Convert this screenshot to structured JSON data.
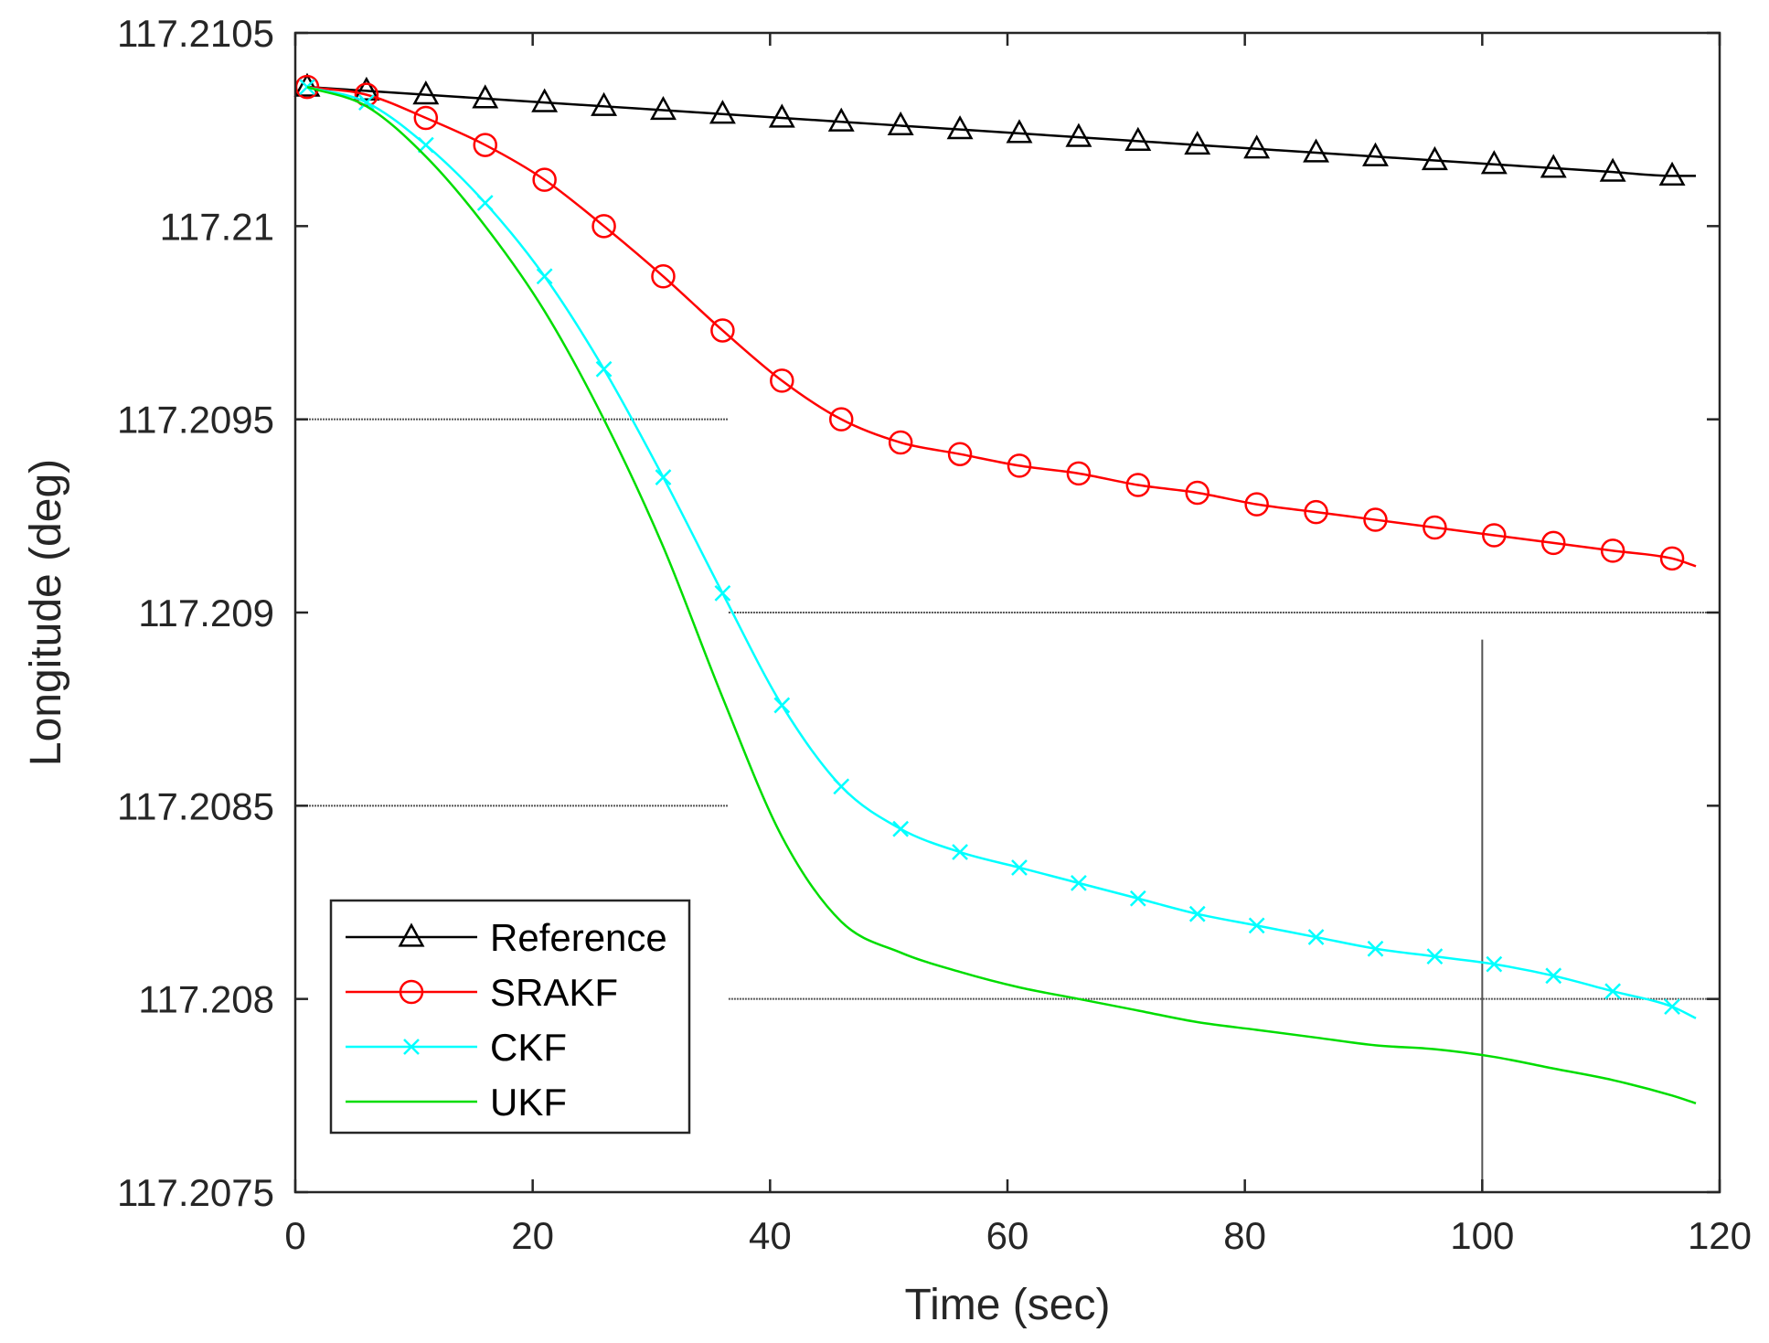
{
  "chart_data": {
    "type": "line",
    "title": "",
    "xlabel": "Time (sec)",
    "ylabel": "Longitude (deg)",
    "xlim": [
      0,
      120
    ],
    "ylim": [
      117.2075,
      117.2105
    ],
    "xticks": [
      0,
      20,
      40,
      60,
      80,
      100,
      120
    ],
    "xtick_labels": [
      "0",
      "20",
      "40",
      "60",
      "80",
      "100",
      "120"
    ],
    "yticks": [
      117.2075,
      117.208,
      117.2085,
      117.209,
      117.2095,
      117.21,
      117.2105
    ],
    "ytick_labels": [
      "117.2075",
      "117.208",
      "117.2085",
      "117.209",
      "117.2095",
      "117.21",
      "117.2105"
    ],
    "legend_position": "bottom-left",
    "reference_lines": [
      {
        "orientation": "horizontal",
        "y": 117.2095,
        "x_range": [
          0,
          36.5
        ],
        "style": "dotted"
      },
      {
        "orientation": "horizontal",
        "y": 117.209,
        "x_range": [
          36.5,
          120
        ],
        "style": "dotted"
      },
      {
        "orientation": "horizontal",
        "y": 117.2085,
        "x_range": [
          0,
          36.5
        ],
        "style": "dotted"
      },
      {
        "orientation": "horizontal",
        "y": 117.208,
        "x_range": [
          36.5,
          120
        ],
        "style": "dotted"
      },
      {
        "orientation": "vertical",
        "x": 100,
        "y_range": [
          117.2075,
          117.20893
        ],
        "style": "solid"
      }
    ],
    "series": [
      {
        "name": "Reference",
        "color": "#000000",
        "marker": "triangle",
        "x": [
          1,
          6,
          11,
          16,
          21,
          26,
          31,
          36,
          41,
          46,
          51,
          56,
          61,
          66,
          71,
          76,
          81,
          86,
          91,
          96,
          101,
          106,
          111,
          116,
          118
        ],
        "y": [
          117.21036,
          117.21035,
          117.21034,
          117.21033,
          117.21032,
          117.21031,
          117.2103,
          117.21029,
          117.21028,
          117.21027,
          117.21026,
          117.21025,
          117.21024,
          117.21023,
          117.21022,
          117.21021,
          117.2102,
          117.21019,
          117.21018,
          117.21017,
          117.21016,
          117.21015,
          117.21014,
          117.21013,
          117.21013
        ],
        "marker_every": 1,
        "marker_count": 24
      },
      {
        "name": "SRAKF",
        "color": "#ff0000",
        "marker": "circle",
        "x": [
          1,
          6,
          11,
          16,
          21,
          26,
          31,
          36,
          41,
          46,
          51,
          56,
          61,
          66,
          71,
          76,
          81,
          86,
          91,
          96,
          101,
          106,
          111,
          116,
          118
        ],
        "y": [
          117.21036,
          117.21034,
          117.21028,
          117.21021,
          117.21012,
          117.21,
          117.20987,
          117.20973,
          117.2096,
          117.2095,
          117.20944,
          117.20941,
          117.20938,
          117.20936,
          117.20933,
          117.20931,
          117.20928,
          117.20926,
          117.20924,
          117.20922,
          117.2092,
          117.20918,
          117.20916,
          117.20914,
          117.20912
        ],
        "marker_count": 24
      },
      {
        "name": "CKF",
        "color": "#00ffff",
        "marker": "x",
        "x": [
          1,
          6,
          11,
          16,
          21,
          26,
          31,
          36,
          41,
          46,
          51,
          56,
          61,
          66,
          71,
          76,
          81,
          86,
          91,
          96,
          101,
          106,
          111,
          116,
          118
        ],
        "y": [
          117.21036,
          117.21032,
          117.21021,
          117.21006,
          117.20987,
          117.20963,
          117.20935,
          117.20905,
          117.20876,
          117.20855,
          117.20844,
          117.20838,
          117.20834,
          117.2083,
          117.20826,
          117.20822,
          117.20819,
          117.20816,
          117.20813,
          117.20811,
          117.20809,
          117.20806,
          117.20802,
          117.20798,
          117.20795
        ],
        "marker_count": 24
      },
      {
        "name": "UKF",
        "color": "#00dd00",
        "marker": "none",
        "x": [
          1,
          6,
          11,
          16,
          21,
          26,
          31,
          36,
          41,
          46,
          51,
          56,
          61,
          66,
          71,
          76,
          81,
          86,
          91,
          96,
          101,
          106,
          111,
          116,
          118
        ],
        "y": [
          117.21036,
          117.21031,
          117.21018,
          117.21,
          117.20978,
          117.2095,
          117.20917,
          117.20878,
          117.20842,
          117.2082,
          117.20812,
          117.20807,
          117.20803,
          117.208,
          117.20797,
          117.20794,
          117.20792,
          117.2079,
          117.20788,
          117.20787,
          117.20785,
          117.20782,
          117.20779,
          117.20775,
          117.20773
        ]
      }
    ]
  }
}
